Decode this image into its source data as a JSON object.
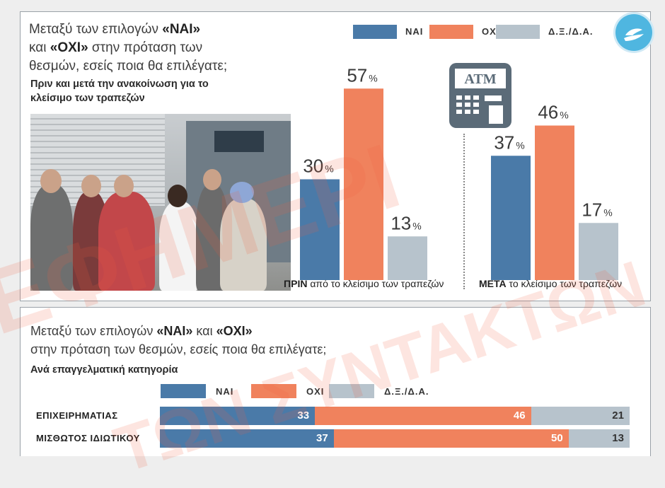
{
  "colors": {
    "nai": "#4a7aa8",
    "oxi": "#f0825d",
    "dxda": "#b7c3cc"
  },
  "top": {
    "question_parts": [
      "Μεταξύ των επιλογών ",
      "«ΝΑΙ»",
      " και ",
      "«ΟΧΙ»",
      " στην πρόταση των θεσμών, εσείς ποια θα επιλέγατε;"
    ],
    "subtitle": "Πριν και μετά την ανακοίνωση για το κλείσιμο των τραπεζών",
    "legend": [
      "ΝΑΙ",
      "ΟΧΙ",
      "Δ.Ξ./Δ.Α."
    ],
    "atm_text": "ATM",
    "before_caption_bold": "ΠΡΙΝ",
    "before_caption_rest": " από το κλείσιμο των τραπεζών",
    "after_caption_bold": "ΜΕΤΑ",
    "after_caption_rest": " το κλείσιμο των τραπεζών"
  },
  "watermark": {
    "line1": "ΕΦΗΜΕΡΙ",
    "line2": "ΤΩΝ ΣΥΝΤΑΚΤΩΝ"
  },
  "chart_data": [
    {
      "type": "bar",
      "title": "ΠΡΙΝ από το κλείσιμο των τραπεζών",
      "categories": [
        "ΝΑΙ",
        "ΟΧΙ",
        "Δ.Ξ./Δ.Α."
      ],
      "values": [
        30,
        57,
        13
      ],
      "unit": "%",
      "ylim": [
        0,
        60
      ]
    },
    {
      "type": "bar",
      "title": "ΜΕΤΑ το κλείσιμο των τραπεζών",
      "categories": [
        "ΝΑΙ",
        "ΟΧΙ",
        "Δ.Ξ./Δ.Α."
      ],
      "values": [
        37,
        46,
        17
      ],
      "unit": "%",
      "ylim": [
        0,
        60
      ]
    },
    {
      "type": "bar",
      "orientation": "horizontal-stacked",
      "title": "Ανά επαγγελματική κατηγορία",
      "categories": [
        "ΕΠΙΧΕΙΡΗΜΑΤΙΑΣ",
        "ΜΙΣΘΩΤΟΣ ΙΔΙΩΤΙΚΟΥ"
      ],
      "series": [
        {
          "name": "ΝΑΙ",
          "values": [
            33,
            37
          ]
        },
        {
          "name": "ΟΧΙ",
          "values": [
            46,
            50
          ]
        },
        {
          "name": "Δ.Ξ./Δ.Α.",
          "values": [
            21,
            13
          ]
        }
      ]
    }
  ],
  "bottom": {
    "question_parts": [
      "Μεταξύ των επιλογών ",
      "«ΝΑΙ»",
      " και ",
      "«ΟΧΙ»",
      " στην πρόταση των θεσμών, εσείς ποια θα επιλέγατε;"
    ],
    "subtitle": "Ανά επαγγελματική κατηγορία",
    "legend": [
      "ΝΑΙ",
      "ΟΧΙ",
      "Δ.Ξ./Δ.Α."
    ]
  }
}
